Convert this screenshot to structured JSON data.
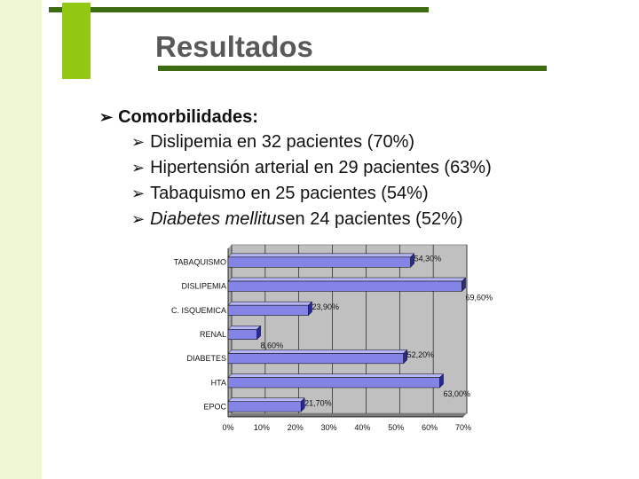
{
  "slide": {
    "title": "Resultados",
    "heading": "Comorbilidades:",
    "items": [
      {
        "italic": "",
        "text": "Dislipemia en 32 pacientes (70%)"
      },
      {
        "italic": "",
        "text": "Hipertensión arterial en 29 pacientes (63%)"
      },
      {
        "italic": "",
        "text": "Tabaquismo en 25 pacientes (54%)"
      },
      {
        "italic": "Diabetes mellitus",
        "text": " en 24 pacientes (52%)"
      }
    ]
  },
  "chart_data": {
    "type": "bar",
    "orientation": "horizontal",
    "categories": [
      "TABAQUISMO",
      "DISLIPEMIA",
      "C. ISQUEMICA",
      "RENAL",
      "DIABETES",
      "HTA",
      "EPOC"
    ],
    "values": [
      54.3,
      69.6,
      23.9,
      8.6,
      52.2,
      63.0,
      21.7
    ],
    "value_labels": [
      "54,30%",
      "69,60%",
      "23,90%",
      "8,60%",
      "52,20%",
      "63,00%",
      "21,70%"
    ],
    "xlim": [
      0,
      70
    ],
    "xticks": [
      "0%",
      "10%",
      "20%",
      "30%",
      "40%",
      "50%",
      "60%",
      "70%"
    ],
    "grid": true,
    "colors": {
      "bar": "#8484e6",
      "bar_top": "#b6b6f4",
      "bar_side": "#2a2a8c",
      "plot_bg": "#c0c0c0"
    }
  }
}
